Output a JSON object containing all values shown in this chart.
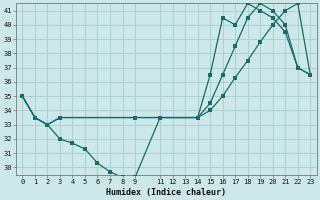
{
  "xlabel": "Humidex (Indice chaleur)",
  "bg_color": "#cce8e8",
  "grid_color": "#aacccc",
  "line_color": "#1a6b6b",
  "xlim": [
    -0.5,
    23.5
  ],
  "ylim": [
    29.5,
    41.5
  ],
  "yticks": [
    30,
    31,
    32,
    33,
    34,
    35,
    36,
    37,
    38,
    39,
    40,
    41
  ],
  "xticks": [
    0,
    1,
    2,
    3,
    4,
    5,
    6,
    7,
    8,
    9,
    11,
    12,
    13,
    14,
    15,
    16,
    17,
    18,
    19,
    20,
    21,
    22,
    23
  ],
  "line1_x": [
    0,
    1,
    2,
    3,
    4,
    5,
    6,
    7,
    8,
    9,
    11,
    14,
    15,
    16,
    17,
    18,
    19,
    20,
    21,
    22,
    23
  ],
  "line1_y": [
    35,
    33.5,
    33,
    32,
    31.7,
    31.3,
    30.3,
    29.7,
    29.3,
    29.3,
    33.5,
    33.5,
    36.5,
    40.5,
    40,
    41.5,
    41,
    40.5,
    39.5,
    37,
    36.5
  ],
  "line2_x": [
    0,
    1,
    2,
    3,
    9,
    11,
    14,
    15,
    16,
    17,
    18,
    19,
    20,
    21,
    22,
    23
  ],
  "line2_y": [
    35,
    33.5,
    33,
    33.5,
    33.5,
    33.5,
    33.5,
    34.5,
    36.5,
    38.5,
    40.5,
    41.5,
    41,
    40,
    37,
    36.5
  ],
  "line3_x": [
    0,
    1,
    2,
    3,
    9,
    11,
    14,
    15,
    16,
    17,
    18,
    19,
    20,
    21,
    22,
    23
  ],
  "line3_y": [
    35,
    33.5,
    33,
    33.5,
    33.5,
    33.5,
    33.5,
    34,
    35,
    36.3,
    37.5,
    38.8,
    40,
    41,
    41.5,
    36.5
  ]
}
